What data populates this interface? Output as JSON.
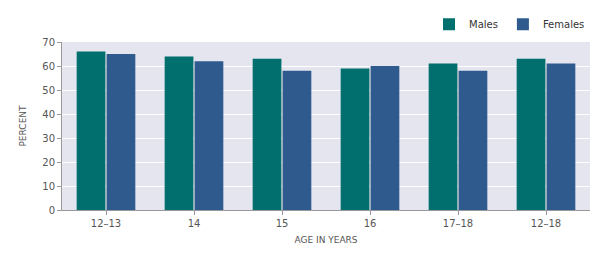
{
  "chart_data": {
    "type": "bar",
    "categories": [
      "12–13",
      "14",
      "15",
      "16",
      "17–18",
      "12–18"
    ],
    "series": [
      {
        "name": "Males",
        "color": "#006f6d",
        "values": [
          66,
          64,
          63,
          59,
          61,
          63
        ]
      },
      {
        "name": "Females",
        "color": "#2f5a8e",
        "values": [
          65,
          62,
          58,
          60,
          58,
          61
        ]
      }
    ],
    "x_label": "AGE IN YEARS",
    "y_label": "PERCENT",
    "ylim": [
      0,
      70
    ],
    "yticks": [
      0,
      10,
      20,
      30,
      40,
      50,
      60,
      70
    ],
    "grid": true,
    "legend": "top right"
  }
}
